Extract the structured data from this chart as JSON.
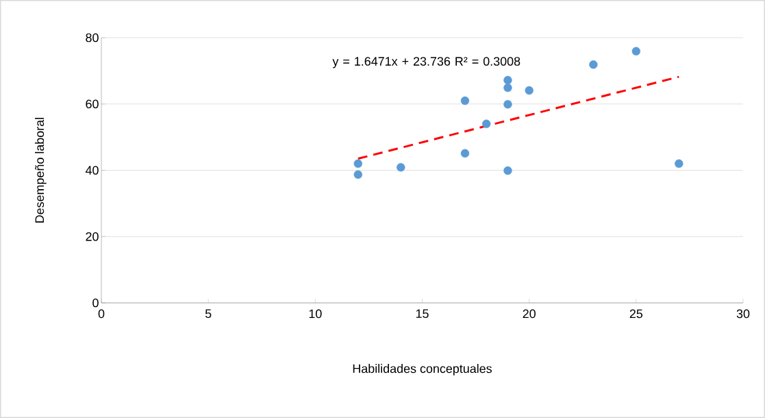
{
  "chart_data": {
    "type": "scatter",
    "xlabel": "Habilidades conceptuales",
    "ylabel": "Desempeño laboral",
    "xlim": [
      0,
      30
    ],
    "xticks": [
      0,
      5,
      10,
      15,
      20,
      25,
      30
    ],
    "ylim": [
      0,
      80
    ],
    "yticks": [
      0,
      20,
      40,
      60,
      80
    ],
    "grid": "y",
    "marker": "circle",
    "series": [
      {
        "color": "#5b9bd5",
        "x": [
          12,
          12,
          14,
          17,
          17,
          18,
          19,
          19,
          19,
          19,
          20,
          23,
          25,
          27
        ],
        "values": [
          42.0,
          38.7,
          40.9,
          61.0,
          45.1,
          54.0,
          67.2,
          64.9,
          59.9,
          39.9,
          64.1,
          71.9,
          75.9,
          42.0
        ]
      },
      {
        "type": "line",
        "color": "#ff0000",
        "line_style": "dashed",
        "marker": "none",
        "x": [
          12,
          27
        ],
        "values": [
          43.5,
          68.2
        ]
      }
    ],
    "annotations": [
      "y = 1.6471x + 23.736 R² = 0.3008"
    ]
  }
}
